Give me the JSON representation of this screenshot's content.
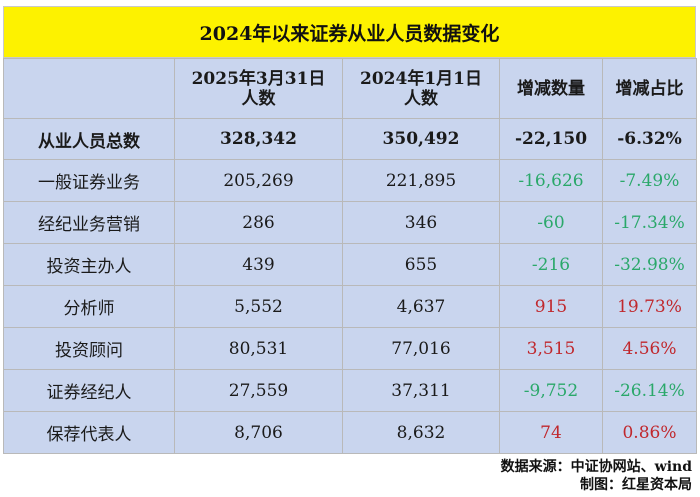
{
  "title": "2024年以来证券从业人员数据变化",
  "headers": {
    "col1": "",
    "col2": "2025年3月31日\n人数",
    "col3": "2024年1月1日\n人数",
    "col4": "增减数量",
    "col5": "增减占比"
  },
  "total": {
    "label": "从业人员总数",
    "v2025": "328,342",
    "v2024": "350,492",
    "change": "-22,150",
    "pct": "-6.32%"
  },
  "rows": [
    {
      "label": "一般证券业务",
      "v2025": "205,269",
      "v2024": "221,895",
      "change": "-16,626",
      "pct": "-7.49%"
    },
    {
      "label": "经纪业务营销",
      "v2025": "286",
      "v2024": "346",
      "change": "-60",
      "pct": "-17.34%"
    },
    {
      "label": "投资主办人",
      "v2025": "439",
      "v2024": "655",
      "change": "-216",
      "pct": "-32.98%"
    },
    {
      "label": "分析师",
      "v2025": "5,552",
      "v2024": "4,637",
      "change": "915",
      "pct": "19.73%"
    },
    {
      "label": "投资顾问",
      "v2025": "80,531",
      "v2024": "77,016",
      "change": "3,515",
      "pct": "4.56%"
    },
    {
      "label": "证券经纪人",
      "v2025": "27,559",
      "v2024": "37,311",
      "change": "-9,752",
      "pct": "-26.14%"
    },
    {
      "label": "保荐代表人",
      "v2025": "8,706",
      "v2024": "8,632",
      "change": "74",
      "pct": "0.86%"
    }
  ],
  "footer": {
    "source": "数据来源：中证协网站、wind",
    "maker": "制图：红星资本局"
  },
  "colors": {
    "title_bg": "#fdf200",
    "table_bg": "#c9d5ee",
    "negative": "#2aa86a",
    "positive": "#c0282d"
  }
}
